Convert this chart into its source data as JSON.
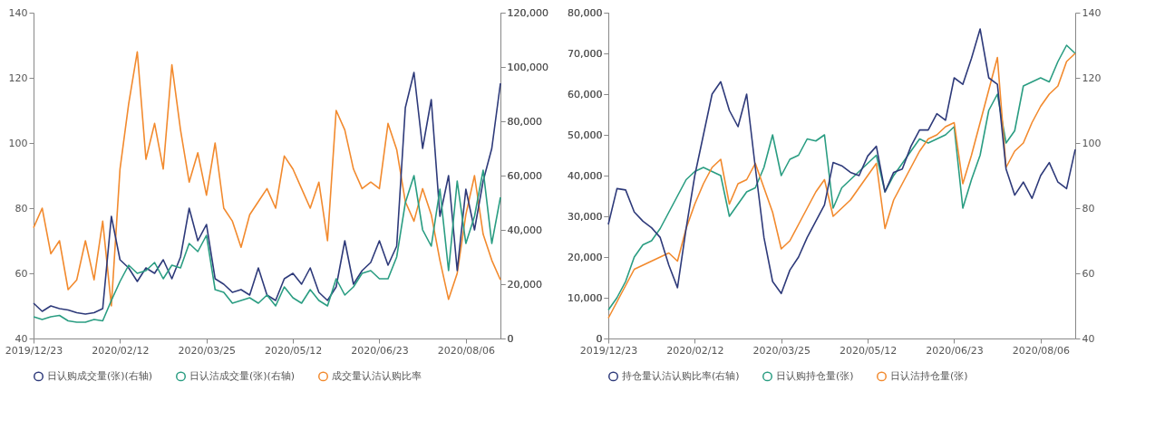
{
  "chart_data": [
    {
      "type": "line",
      "categories": [
        "2019/12/23",
        null,
        null,
        null,
        null,
        null,
        null,
        null,
        null,
        null,
        "2020/02/12",
        null,
        null,
        null,
        null,
        null,
        null,
        null,
        null,
        null,
        "2020/03/25",
        null,
        null,
        null,
        null,
        null,
        null,
        null,
        null,
        null,
        "2020/05/12",
        null,
        null,
        null,
        null,
        null,
        null,
        null,
        null,
        null,
        "2020/06/23",
        null,
        null,
        null,
        null,
        null,
        null,
        null,
        null,
        null,
        "2020/08/06",
        null,
        null,
        null,
        null
      ],
      "series": [
        {
          "name": "日认购成交量(张)(右轴)",
          "color": "#2e3a7a",
          "axis": "y2",
          "values": [
            13000,
            10000,
            12000,
            11000,
            10500,
            9500,
            9000,
            9500,
            11000,
            45000,
            29000,
            26000,
            21000,
            26000,
            24000,
            29000,
            22000,
            30000,
            48000,
            36000,
            42000,
            22000,
            20000,
            17000,
            18000,
            16000,
            26000,
            16000,
            14000,
            22000,
            24000,
            20000,
            26000,
            17000,
            14000,
            19000,
            36000,
            20000,
            25000,
            28000,
            36000,
            27000,
            34000,
            85000,
            98000,
            70000,
            88000,
            45000,
            60000,
            25000,
            55000,
            40000,
            58000,
            70000,
            94000
          ]
        },
        {
          "name": "日认沽成交量(张)(右轴)",
          "color": "#2a9d82",
          "axis": "y2",
          "values": [
            8000,
            7000,
            8000,
            8500,
            6500,
            6000,
            6000,
            7000,
            6500,
            14000,
            21000,
            27000,
            24000,
            25000,
            28000,
            22000,
            27000,
            26000,
            35000,
            32000,
            38000,
            18000,
            17000,
            13000,
            14000,
            15000,
            13000,
            16000,
            12000,
            19000,
            15000,
            13000,
            18000,
            14000,
            12000,
            22000,
            16000,
            19000,
            24000,
            25000,
            22000,
            22000,
            30000,
            50000,
            60000,
            40000,
            34000,
            55000,
            25000,
            58000,
            35000,
            45000,
            62000,
            35000,
            52000
          ]
        },
        {
          "name": "成交量认沽认购比率",
          "color": "#f28a2e",
          "values": [
            74,
            80,
            66,
            70,
            55,
            58,
            70,
            58,
            76,
            50,
            92,
            112,
            128,
            95,
            106,
            92,
            124,
            104,
            88,
            97,
            84,
            100,
            80,
            76,
            68,
            78,
            82,
            86,
            80,
            96,
            92,
            86,
            80,
            88,
            70,
            110,
            104,
            92,
            86,
            88,
            86,
            106,
            98,
            82,
            76,
            86,
            78,
            64,
            52,
            60,
            78,
            90,
            72,
            64,
            58
          ]
        }
      ],
      "ylim": [
        40,
        140
      ],
      "yticks": [
        40,
        60,
        80,
        100,
        120,
        140
      ],
      "y2lim": [
        0,
        120000
      ],
      "y2ticks": [
        0,
        {
          "value": 20000,
          "label": "20,000"
        },
        {
          "value": 40000,
          "label": "40,000"
        },
        {
          "value": 60000,
          "label": "60,000"
        },
        {
          "value": 80000,
          "label": "80,000"
        },
        {
          "value": 100000,
          "label": "100,000"
        },
        {
          "value": 120000,
          "label": "120,000"
        }
      ],
      "grid": false,
      "legend": "bottom"
    },
    {
      "type": "line",
      "categories": [
        "2019/12/23",
        null,
        null,
        null,
        null,
        null,
        null,
        null,
        null,
        null,
        "2020/02/12",
        null,
        null,
        null,
        null,
        null,
        null,
        null,
        null,
        null,
        "2020/03/25",
        null,
        null,
        null,
        null,
        null,
        null,
        null,
        null,
        null,
        "2020/05/12",
        null,
        null,
        null,
        null,
        null,
        null,
        null,
        null,
        null,
        "2020/06/23",
        null,
        null,
        null,
        null,
        null,
        null,
        null,
        null,
        null,
        "2020/08/06",
        null,
        null,
        null,
        null
      ],
      "series": [
        {
          "name": "持仓量认沽认购比率(右轴)",
          "color": "#2e3a7a",
          "axis": "y2",
          "values": [
            75,
            86,
            85.6,
            78.8,
            76,
            74,
            71,
            62.5,
            55.6,
            73.8,
            90,
            102.5,
            115,
            118.8,
            110,
            105,
            115,
            92.5,
            71,
            57.5,
            53.8,
            61,
            65,
            71,
            76,
            81,
            94,
            93,
            91,
            90,
            96,
            99,
            85,
            91,
            92,
            99,
            104,
            104,
            109,
            107,
            120,
            118,
            126,
            135,
            120,
            118,
            92,
            84,
            88,
            83,
            90,
            94,
            88,
            86,
            98
          ]
        },
        {
          "name": "日认购持仓量(张)",
          "color": "#2a9d82",
          "values": [
            7000,
            10000,
            14000,
            20000,
            23000,
            24000,
            27000,
            31000,
            35000,
            39000,
            41000,
            42000,
            41000,
            40000,
            30000,
            33000,
            36000,
            37000,
            42000,
            50000,
            40000,
            44000,
            45000,
            49000,
            48500,
            50000,
            32000,
            37000,
            39000,
            41000,
            43000,
            45000,
            36000,
            40000,
            43000,
            46000,
            49000,
            48000,
            49000,
            50000,
            52000,
            32000,
            39000,
            45000,
            56000,
            60000,
            48000,
            51000,
            62000,
            63000,
            64000,
            63000,
            68000,
            72000,
            70000
          ]
        },
        {
          "name": "日认沽持仓量(张)",
          "color": "#f28a2e",
          "values": [
            5000,
            9000,
            13000,
            17000,
            18000,
            19000,
            20000,
            21000,
            19000,
            27000,
            33000,
            38000,
            42000,
            44000,
            33000,
            38000,
            39000,
            43000,
            37000,
            31000,
            22000,
            24000,
            28000,
            32000,
            36000,
            39000,
            30000,
            32000,
            34000,
            37000,
            40000,
            43000,
            27000,
            34000,
            38000,
            42000,
            46000,
            49000,
            50000,
            52000,
            53000,
            38000,
            45000,
            53000,
            61000,
            69000,
            42000,
            46000,
            48000,
            53000,
            57000,
            60000,
            62000,
            68000,
            70000
          ]
        }
      ],
      "ylim": [
        0,
        80000
      ],
      "yticks": [
        0,
        {
          "value": 10000,
          "label": "10,000"
        },
        {
          "value": 20000,
          "label": "20,000"
        },
        {
          "value": 30000,
          "label": "30,000"
        },
        {
          "value": 40000,
          "label": "40,000"
        },
        {
          "value": 50000,
          "label": "50,000"
        },
        {
          "value": 60000,
          "label": "60,000"
        },
        {
          "value": 70000,
          "label": "70,000"
        },
        {
          "value": 80000,
          "label": "80,000"
        }
      ],
      "y2lim": [
        40,
        140
      ],
      "y2ticks": [
        40,
        60,
        80,
        100,
        120,
        140
      ],
      "grid": false,
      "legend": "bottom"
    }
  ]
}
